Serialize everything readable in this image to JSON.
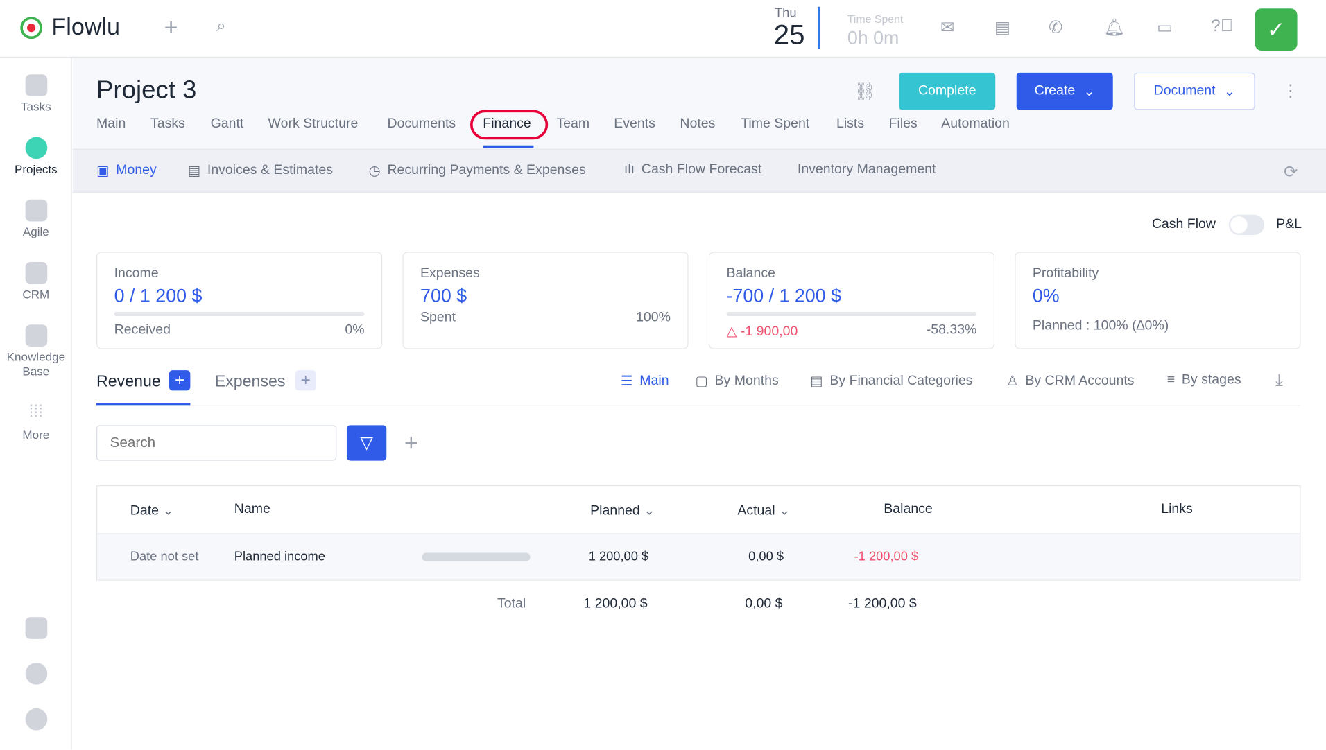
{
  "app": {
    "name": "Flowlu"
  },
  "topbar": {
    "day": "Thu",
    "date": "25",
    "time_spent_label": "Time Spent",
    "time_spent_value": "0h 0m"
  },
  "sidebar": {
    "items": [
      {
        "label": "Tasks"
      },
      {
        "label": "Projects"
      },
      {
        "label": "Agile"
      },
      {
        "label": "CRM"
      },
      {
        "label": "Knowledge Base"
      },
      {
        "label": "More"
      }
    ]
  },
  "project": {
    "title": "Project 3",
    "complete": "Complete",
    "create": "Create",
    "document": "Document"
  },
  "tabs": [
    "Main",
    "Tasks",
    "Gantt",
    "Work Structure",
    "Documents",
    "Finance",
    "Team",
    "Events",
    "Notes",
    "Time Spent",
    "Lists",
    "Files",
    "Automation"
  ],
  "subtabs": [
    "Money",
    "Invoices & Estimates",
    "Recurring Payments & Expenses",
    "Cash Flow Forecast",
    "Inventory Management"
  ],
  "toggle": {
    "left": "Cash Flow",
    "right": "P&L"
  },
  "cards": {
    "income": {
      "label": "Income",
      "value": "0 / 1 200 $",
      "sub": "Received",
      "pct": "0%"
    },
    "expenses": {
      "label": "Expenses",
      "value": "700 $",
      "sub": "Spent",
      "pct": "100%"
    },
    "balance": {
      "label": "Balance",
      "value": "-700 / 1 200 $",
      "sub": "-1 900,00",
      "pct": "-58.33%"
    },
    "profit": {
      "label": "Profitability",
      "value": "0%",
      "sub": "Planned : 100% (∆0%)"
    }
  },
  "sections": {
    "revenue": "Revenue",
    "expenses": "Expenses"
  },
  "views": [
    "Main",
    "By Months",
    "By Financial Categories",
    "By CRM Accounts",
    "By stages"
  ],
  "search": {
    "placeholder": "Search"
  },
  "table": {
    "headers": [
      "Date",
      "Name",
      "Planned",
      "Actual",
      "Balance",
      "Links"
    ],
    "row": {
      "date": "Date not set",
      "name": "Planned income",
      "planned": "1 200,00 $",
      "actual": "0,00 $",
      "balance": "-1 200,00 $"
    },
    "total": {
      "label": "Total",
      "planned": "1 200,00 $",
      "actual": "0,00 $",
      "balance": "-1 200,00 $"
    }
  },
  "colors": {
    "accent": "#2f5be8",
    "complete": "#35c4d2",
    "negative": "#f0506e",
    "highlight": "#e8003b"
  }
}
